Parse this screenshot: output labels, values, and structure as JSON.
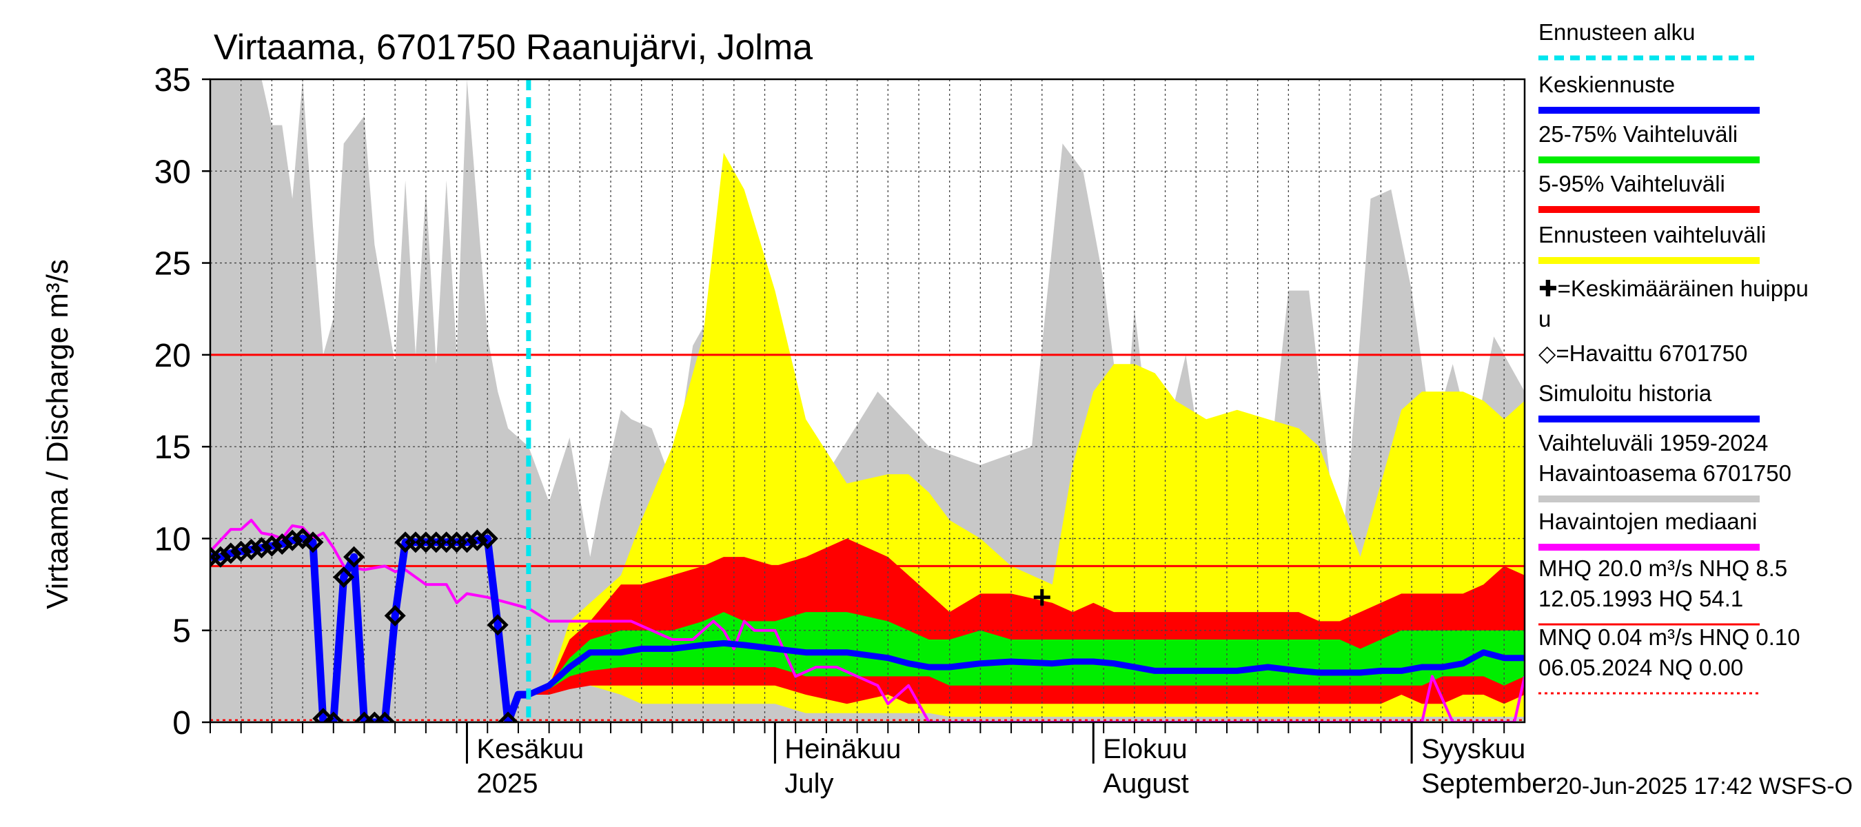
{
  "chart_data": {
    "type": "area",
    "title": "Virtaama, 6701750 Raanujärvi, Jolma",
    "ylabel": "Virtaama / Discharge   m³/s",
    "ylim": [
      0,
      35
    ],
    "y_ticks": [
      0,
      5,
      10,
      15,
      20,
      25,
      30,
      35
    ],
    "x_unit": "days from 2025-05-07",
    "xlim": [
      0,
      128
    ],
    "month_labels": [
      {
        "top": "Kesäkuu",
        "bottom": "2025",
        "day": 25
      },
      {
        "top": "Heinäkuu",
        "bottom": "July",
        "day": 55
      },
      {
        "top": "Elokuu",
        "bottom": "August",
        "day": 86
      },
      {
        "top": "Syyskuu",
        "bottom": "September",
        "day": 117
      }
    ],
    "forecast_start_day": 31,
    "reference_lines": {
      "MHQ": 20.0,
      "NHQ": 8.5,
      "MNQ": 0.04,
      "NQ": 0.0
    },
    "mean_peak": {
      "day": 81,
      "value": 6.8
    },
    "legend": [
      {
        "label": "Ennusteen alku",
        "color": "#00e5ee",
        "style": "dashed"
      },
      {
        "label": "Keskiennuste",
        "color": "#0000ff",
        "style": "line"
      },
      {
        "label": "25-75% Vaihteluväli",
        "color": "#00ee00",
        "style": "line"
      },
      {
        "label": "5-95% Vaihteluväli",
        "color": "#ff0000",
        "style": "line"
      },
      {
        "label": "Ennusteen vaihteluväli",
        "color": "#ffff00",
        "style": "line"
      },
      {
        "label": "✚=Keskimääräinen huippu",
        "line2": "u",
        "color": "#000000",
        "style": "none"
      },
      {
        "label": "◇=Havaittu 6701750",
        "color": "#000000",
        "style": "none"
      },
      {
        "label": "Simuloitu historia",
        "color": "#0000ff",
        "style": "line"
      },
      {
        "label": "Vaihteluväli 1959-2024",
        "line2": " Havaintoasema 6701750",
        "color": "#c8c8c8",
        "style": "line"
      },
      {
        "label": "Havaintojen mediaani",
        "color": "#ff00ff",
        "style": "line"
      },
      {
        "label": "MHQ 20.0 m³/s NHQ  8.5",
        "line2": "12.05.1993 HQ 54.1",
        "color": "#ff0000",
        "style": "line"
      },
      {
        "label": "MNQ 0.04 m³/s HNQ 0.10",
        "line2": "06.05.2024 NQ 0.00",
        "color": "#ff0000",
        "style": "dashed"
      }
    ],
    "footer": "20-Jun-2025 17:42 WSFS-O",
    "series": {
      "history_range": {
        "name": "Vaihteluväli 1959-2024",
        "color": "#c8c8c8",
        "x": [
          0,
          3,
          5,
          6,
          7,
          8,
          9,
          10,
          11,
          12,
          13,
          15,
          16,
          18,
          19,
          20,
          21,
          22,
          23,
          24,
          25,
          27,
          28,
          29,
          31,
          33,
          35,
          37,
          38,
          40,
          41,
          43,
          45,
          47,
          50,
          52,
          55,
          60,
          65,
          70,
          75,
          80,
          83,
          85,
          87,
          89,
          90,
          92,
          95,
          97,
          100,
          103,
          105,
          107,
          110,
          111,
          113,
          115,
          117,
          119,
          121,
          123,
          125,
          126,
          128
        ],
        "upper": [
          35,
          35,
          35,
          32.5,
          32.5,
          28.5,
          35,
          27,
          20,
          22,
          31.5,
          33,
          26,
          19.5,
          29.5,
          20,
          29,
          19.5,
          29.5,
          20,
          35,
          21,
          18,
          16,
          15,
          12,
          15.5,
          9,
          12,
          17,
          16.5,
          16,
          13,
          20.5,
          23.5,
          14,
          15,
          13.5,
          18,
          15,
          14,
          15,
          31.5,
          30,
          24,
          15,
          22.5,
          13,
          20,
          12.5,
          13,
          13,
          23.5,
          23.5,
          8.5,
          14,
          28.5,
          29,
          23.5,
          15.5,
          19.5,
          15,
          21,
          20,
          18
        ],
        "lower": [
          0,
          0,
          0,
          0,
          0,
          0,
          0,
          0,
          0,
          0,
          0,
          0,
          0,
          0,
          0,
          0,
          0,
          0,
          0,
          0,
          0,
          0,
          0,
          0,
          0,
          0,
          0,
          0,
          0,
          0,
          0,
          0,
          0,
          0,
          0,
          0,
          0,
          0,
          0,
          0,
          0,
          0,
          0,
          0,
          0,
          0,
          0,
          0,
          0,
          0,
          0,
          0,
          0,
          0,
          0,
          0,
          0,
          0,
          0,
          0,
          0,
          0,
          0,
          0,
          0
        ]
      },
      "forecast_total": {
        "name": "Ennusteen vaihteluväli",
        "color": "#ffff00",
        "x": [
          31,
          33,
          35,
          37,
          40,
          42,
          45,
          48,
          50,
          52,
          55,
          58,
          62,
          66,
          68,
          70,
          72,
          75,
          78,
          82,
          84,
          86,
          88,
          90,
          92,
          94,
          97,
          100,
          103,
          106,
          108,
          110,
          112,
          114,
          116,
          118,
          120,
          122,
          124,
          126,
          128
        ],
        "upper": [
          1.5,
          2,
          5.5,
          6.5,
          8,
          11,
          15,
          21,
          31,
          29,
          23.5,
          16.5,
          13,
          13.5,
          13.5,
          12.5,
          11,
          10,
          8.5,
          7.5,
          14,
          18,
          19.5,
          19.5,
          19,
          17.5,
          16.5,
          17,
          16.5,
          16,
          15,
          12,
          9,
          13,
          17,
          18,
          18,
          18,
          17.5,
          16.5,
          17.5
        ],
        "lower": [
          1.5,
          1.8,
          2,
          2,
          1.5,
          1,
          1,
          1,
          1,
          1,
          1,
          0.5,
          0.5,
          0.5,
          0.5,
          0.5,
          0.3,
          0.3,
          0.3,
          0.3,
          0.3,
          0.3,
          0.3,
          0.3,
          0.3,
          0.3,
          0.3,
          0.3,
          0.3,
          0.3,
          0.3,
          0.3,
          0.3,
          0.3,
          0.3,
          0.3,
          0.3,
          0.3,
          0.3,
          0.3,
          0.3
        ]
      },
      "forecast_5_95": {
        "name": "5-95% Vaihteluväli",
        "color": "#ff0000",
        "x": [
          31,
          33,
          35,
          37,
          40,
          42,
          45,
          48,
          50,
          52,
          55,
          58,
          62,
          66,
          68,
          70,
          72,
          75,
          78,
          82,
          84,
          86,
          88,
          90,
          92,
          94,
          97,
          100,
          103,
          106,
          108,
          110,
          112,
          114,
          116,
          118,
          120,
          122,
          124,
          126,
          128
        ],
        "upper": [
          1.5,
          2,
          4.5,
          5.5,
          7.5,
          7.5,
          8,
          8.5,
          9,
          9,
          8.5,
          9,
          10,
          9,
          8,
          7,
          6,
          7,
          7,
          6.5,
          6,
          6.5,
          6,
          6,
          6,
          6,
          6,
          6,
          6,
          6,
          5.5,
          5.5,
          6,
          6.5,
          7,
          7,
          7,
          7,
          7.5,
          8.5,
          8
        ],
        "lower": [
          1.5,
          1.5,
          1.8,
          2,
          2,
          2,
          2,
          2,
          2,
          2,
          2,
          1.5,
          1,
          1.5,
          1,
          1,
          1,
          1,
          1,
          1,
          1,
          1,
          1,
          1,
          1,
          1,
          1,
          1,
          1,
          1,
          1,
          1,
          1,
          1,
          1.5,
          1,
          1,
          1.5,
          1.5,
          1,
          1.5
        ]
      },
      "forecast_25_75": {
        "name": "25-75% Vaihteluväli",
        "color": "#00ee00",
        "x": [
          31,
          33,
          35,
          37,
          40,
          42,
          45,
          48,
          50,
          52,
          55,
          58,
          62,
          66,
          68,
          70,
          72,
          75,
          78,
          82,
          84,
          86,
          88,
          90,
          92,
          94,
          97,
          100,
          103,
          106,
          108,
          110,
          112,
          114,
          116,
          118,
          120,
          122,
          124,
          126,
          128
        ],
        "upper": [
          1.5,
          2,
          3.5,
          4.5,
          5,
          5,
          5,
          5.5,
          6,
          5.5,
          5.5,
          6,
          6,
          5.5,
          5,
          4.5,
          4.5,
          5,
          4.5,
          4.5,
          4.5,
          4.5,
          4.5,
          4.5,
          4.5,
          4.5,
          4.5,
          4.5,
          4.5,
          4.5,
          4.5,
          4.5,
          4,
          4.5,
          5,
          5,
          5,
          5,
          5,
          5,
          5
        ],
        "lower": [
          1.5,
          1.8,
          2.5,
          2.8,
          3,
          3,
          3,
          3,
          3,
          3,
          3,
          2.5,
          2.5,
          2.5,
          2.5,
          2.5,
          2,
          2,
          2,
          2,
          2,
          2,
          2,
          2,
          2,
          2,
          2,
          2,
          2,
          2,
          2,
          2,
          2,
          2,
          2,
          2,
          2.5,
          2.5,
          2.5,
          2,
          2.5
        ]
      },
      "forecast_median": {
        "name": "Keskiennuste",
        "color": "#0000ff",
        "x": [
          31,
          33,
          35,
          37,
          40,
          42,
          45,
          48,
          50,
          52,
          55,
          58,
          62,
          66,
          68,
          70,
          72,
          75,
          78,
          82,
          84,
          86,
          88,
          90,
          92,
          94,
          97,
          100,
          103,
          106,
          108,
          110,
          112,
          114,
          116,
          118,
          120,
          122,
          124,
          126,
          128
        ],
        "values": [
          1.5,
          2,
          3,
          3.8,
          3.8,
          4,
          4,
          4.2,
          4.3,
          4.2,
          4,
          3.8,
          3.8,
          3.5,
          3.2,
          3,
          3,
          3.2,
          3.3,
          3.2,
          3.3,
          3.3,
          3.2,
          3,
          2.8,
          2.8,
          2.8,
          2.8,
          3,
          2.8,
          2.7,
          2.7,
          2.7,
          2.8,
          2.8,
          3,
          3,
          3.2,
          3.8,
          3.5,
          3.5
        ]
      },
      "observed_median": {
        "name": "Havaintojen mediaani",
        "color": "#ff00ff",
        "x": [
          0,
          2,
          3,
          4,
          5,
          6,
          7,
          8,
          9,
          10,
          11,
          12,
          13,
          15,
          17,
          18,
          19,
          21,
          23,
          24,
          25,
          27,
          29,
          31,
          33,
          35,
          37,
          39,
          41,
          43,
          45,
          47,
          49,
          50,
          51,
          52,
          53,
          55,
          57,
          59,
          61,
          63,
          65,
          66,
          68,
          70,
          73,
          75,
          80,
          90,
          100,
          110,
          115,
          117,
          118,
          119,
          121,
          123,
          125,
          127,
          128
        ],
        "values": [
          9.3,
          10.5,
          10.5,
          11,
          10.3,
          10.2,
          10,
          10.7,
          10.6,
          10,
          10.3,
          9.5,
          8.5,
          8.3,
          8.5,
          8.2,
          8.3,
          7.5,
          7.5,
          6.5,
          7,
          6.8,
          6.5,
          6.2,
          5.5,
          5.5,
          5.5,
          5.5,
          5.5,
          5,
          4.5,
          4.5,
          5.5,
          5,
          4,
          5.5,
          5,
          5,
          2.5,
          3,
          3,
          2.5,
          2,
          1,
          2,
          0,
          0,
          0,
          0,
          0,
          0,
          0,
          0,
          0,
          0,
          2.5,
          0,
          0,
          0,
          0,
          2.5
        ]
      },
      "simulated_history": {
        "name": "Simuloitu historia",
        "color": "#0000ff",
        "x": [
          0,
          1,
          2,
          3,
          4,
          5,
          6,
          7,
          8,
          9,
          10,
          11,
          12,
          13,
          14,
          15,
          16,
          17,
          18,
          19,
          20,
          21,
          22,
          23,
          24,
          25,
          26,
          27,
          28,
          29,
          30,
          31
        ],
        "values": [
          9,
          9,
          9.2,
          9.3,
          9.4,
          9.5,
          9.6,
          9.7,
          9.9,
          10,
          9.8,
          0,
          0,
          7.9,
          9,
          0,
          0,
          0,
          5.8,
          9.8,
          9.8,
          9.8,
          9.8,
          9.8,
          9.8,
          9.8,
          9.9,
          10,
          5.3,
          0,
          1.5,
          1.5
        ]
      },
      "observed": {
        "name": "Havaittu 6701750",
        "color": "#000000",
        "x": [
          0,
          1,
          2,
          3,
          4,
          5,
          6,
          7,
          8,
          9,
          10,
          11,
          12,
          13,
          14,
          15,
          16,
          17,
          18,
          19,
          20,
          21,
          22,
          23,
          24,
          25,
          26,
          27,
          28,
          29
        ],
        "values": [
          9,
          9,
          9.2,
          9.3,
          9.4,
          9.5,
          9.6,
          9.7,
          9.9,
          10,
          9.8,
          0.2,
          0,
          7.9,
          9,
          0,
          0,
          0,
          5.8,
          9.8,
          9.8,
          9.8,
          9.8,
          9.8,
          9.8,
          9.8,
          9.9,
          10,
          5.3,
          0
        ]
      }
    }
  }
}
